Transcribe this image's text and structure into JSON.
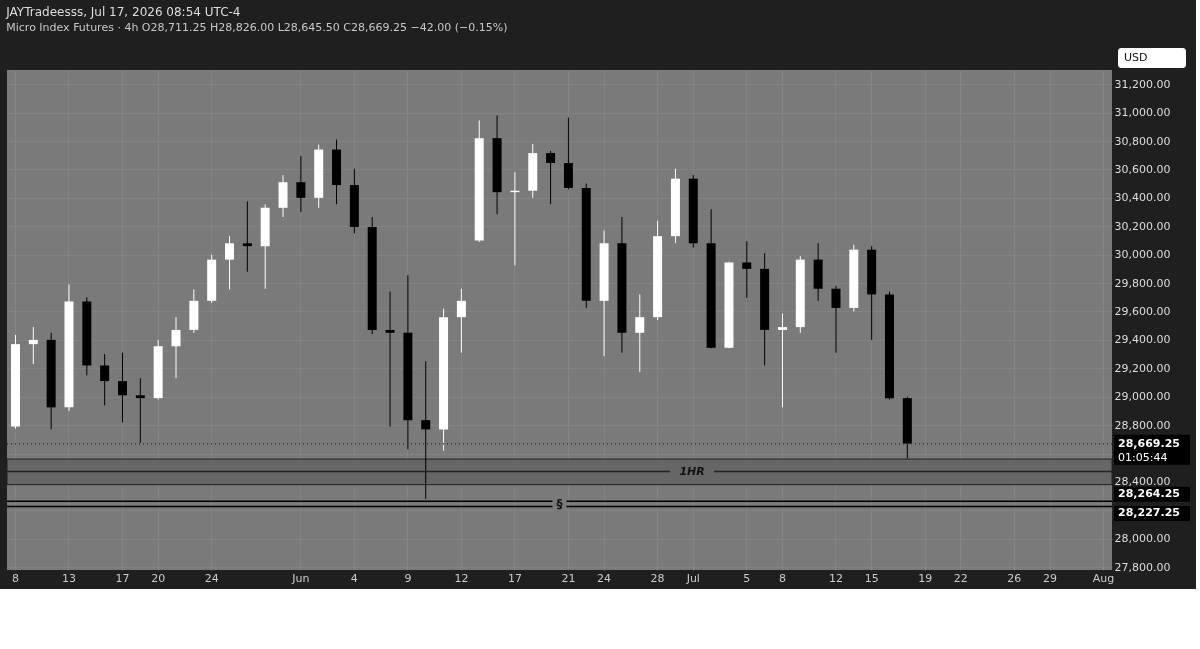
{
  "chart_data": {
    "type": "candlestick",
    "title": "JAYTradeesss, Jul 17, 2026 08:54 UTC-4",
    "subtitle": "Micro Index Futures · 4h   O28,711.25  H28,826.00  L28,645.50  C28,669.25  −42.00 (−0.15%)",
    "categories": [
      "8",
      null,
      null,
      "13",
      null,
      null,
      "17",
      null,
      "20",
      null,
      null,
      "24",
      null,
      null,
      null,
      null,
      "Jun",
      null,
      null,
      "4",
      null,
      null,
      "9",
      null,
      null,
      "12",
      null,
      null,
      "17",
      null,
      null,
      "21",
      null,
      "24",
      null,
      null,
      "28",
      null,
      "Jul",
      null,
      null,
      "5",
      null,
      "8",
      null,
      null,
      "12",
      null,
      "15",
      null,
      null,
      "19",
      null,
      "22",
      null,
      null,
      "26",
      null,
      "29",
      null,
      null,
      "Aug"
    ],
    "ohlc": [
      [
        28790,
        29435,
        28775,
        29370
      ],
      [
        29370,
        29490,
        29230,
        29400
      ],
      [
        29400,
        29450,
        28770,
        28925
      ],
      [
        28925,
        29790,
        28900,
        29670
      ],
      [
        29670,
        29700,
        29150,
        29220
      ],
      [
        29220,
        29300,
        28940,
        29110
      ],
      [
        29110,
        29310,
        28820,
        29010
      ],
      [
        29010,
        29130,
        28675,
        28990
      ],
      [
        28990,
        29400,
        28980,
        29355
      ],
      [
        29355,
        29560,
        29130,
        29470
      ],
      [
        29470,
        29755,
        29450,
        29675
      ],
      [
        29675,
        30000,
        29660,
        29965
      ],
      [
        29965,
        30130,
        29755,
        30080
      ],
      [
        30080,
        30375,
        29880,
        30060
      ],
      [
        30060,
        30355,
        29760,
        30330
      ],
      [
        30330,
        30560,
        30265,
        30510
      ],
      [
        30510,
        30695,
        30300,
        30400
      ],
      [
        30400,
        30775,
        30330,
        30740
      ],
      [
        30740,
        30810,
        30355,
        30490
      ],
      [
        30490,
        30605,
        30150,
        30195
      ],
      [
        30195,
        30265,
        29440,
        29470
      ],
      [
        29470,
        29740,
        28790,
        29450
      ],
      [
        29450,
        29855,
        28630,
        28835
      ],
      [
        28835,
        29250,
        28280,
        28770
      ],
      [
        28770,
        29620,
        28620,
        29560
      ],
      [
        29560,
        29760,
        29310,
        29675
      ],
      [
        30100,
        30945,
        30090,
        30820
      ],
      [
        30820,
        30980,
        30285,
        30440
      ],
      [
        30440,
        30580,
        29925,
        30450
      ],
      [
        30450,
        30780,
        30400,
        30715
      ],
      [
        30715,
        30730,
        30355,
        30645
      ],
      [
        30645,
        30965,
        30460,
        30470
      ],
      [
        30470,
        30500,
        29625,
        29675
      ],
      [
        29675,
        30170,
        29285,
        30080
      ],
      [
        30080,
        30265,
        29310,
        29450
      ],
      [
        29450,
        29720,
        29175,
        29560
      ],
      [
        29560,
        30240,
        29540,
        30130
      ],
      [
        30130,
        30605,
        30080,
        30535
      ],
      [
        30535,
        30560,
        30050,
        30080
      ],
      [
        30080,
        30320,
        29340,
        29345
      ],
      [
        29345,
        29950,
        29340,
        29945
      ],
      [
        29945,
        30095,
        29695,
        29900
      ],
      [
        29900,
        30010,
        29220,
        29470
      ],
      [
        29470,
        29585,
        28925,
        29490
      ],
      [
        29490,
        29990,
        29450,
        29965
      ],
      [
        29965,
        30080,
        29675,
        29760
      ],
      [
        29760,
        29780,
        29310,
        29625
      ],
      [
        29625,
        30070,
        29600,
        30035
      ],
      [
        30035,
        30060,
        29400,
        29720
      ],
      [
        29720,
        29740,
        28980,
        28990
      ],
      [
        28990,
        29000,
        28565,
        28669.25
      ],
      null,
      null,
      null,
      null,
      null,
      null,
      null,
      null,
      null,
      null,
      null
    ],
    "colors": [
      "#ffffff",
      "#ffffff",
      "#000000",
      "#ffffff",
      "#000000",
      "#000000",
      "#000000",
      "#000000",
      "#ffffff",
      "#ffffff",
      "#ffffff",
      "#ffffff",
      "#ffffff",
      "#000000",
      "#ffffff",
      "#ffffff",
      "#000000",
      "#ffffff",
      "#000000",
      "#000000",
      "#000000",
      "#000000",
      "#000000",
      "#000000",
      "#ffffff",
      "#ffffff",
      "#ffffff",
      "#000000",
      "#ffffff",
      "#ffffff",
      "#000000",
      "#000000",
      "#000000",
      "#ffffff",
      "#000000",
      "#ffffff",
      "#ffffff",
      "#ffffff",
      "#000000",
      "#000000",
      "#ffffff",
      "#000000",
      "#000000",
      "#ffffff",
      "#ffffff",
      "#000000",
      "#000000",
      "#ffffff",
      "#000000",
      "#000000",
      "#000000",
      null,
      null,
      null,
      null,
      null,
      null,
      null,
      null,
      null,
      null,
      null
    ],
    "ylim": [
      27780,
      31300
    ],
    "yticks": [
      {
        "value": 27800,
        "label": "27,800.00"
      },
      {
        "value": 28000,
        "label": "28,000.00"
      },
      {
        "value": 28200,
        "label": null
      },
      {
        "value": 28400,
        "label": "28,400.00"
      },
      {
        "value": 28600,
        "label": null
      },
      {
        "value": 28800,
        "label": "28,800.00"
      },
      {
        "value": 29000,
        "label": "29,000.00"
      },
      {
        "value": 29200,
        "label": "29,200.00"
      },
      {
        "value": 29400,
        "label": "29,400.00"
      },
      {
        "value": 29600,
        "label": "29,600.00"
      },
      {
        "value": 29800,
        "label": "29,800.00"
      },
      {
        "value": 30000,
        "label": "30,000.00"
      },
      {
        "value": 30200,
        "label": "30,200.00"
      },
      {
        "value": 30400,
        "label": "30,400.00"
      },
      {
        "value": 30600,
        "label": "30,600.00"
      },
      {
        "value": 30800,
        "label": "30,800.00"
      },
      {
        "value": 31000,
        "label": "31,000.00"
      },
      {
        "value": 31200,
        "label": "31,200.00"
      }
    ],
    "grid": true,
    "ref_lines": [
      {
        "axis": "y",
        "value": 28669.25,
        "label": "28,669.25",
        "line_style": "dotted",
        "color": "#333333"
      },
      {
        "axis": "y",
        "value": 28264.25,
        "label": "28,264.25",
        "line_style": "solid",
        "color": "#000000"
      },
      {
        "axis": "y",
        "value": 28227.25,
        "label": "28,227.25",
        "line_style": "solid",
        "color": "#000000"
      },
      {
        "axis": "y",
        "value": 28473,
        "label": "1HR",
        "line_style": "solid",
        "color": "#222222"
      }
    ],
    "bands": [
      {
        "axis": "y",
        "from": 28381,
        "to": 28561,
        "color": "#666666"
      }
    ],
    "annotations": [
      "USD",
      "01:05:44",
      {
        "text": "§",
        "y": 28245.75
      }
    ]
  }
}
